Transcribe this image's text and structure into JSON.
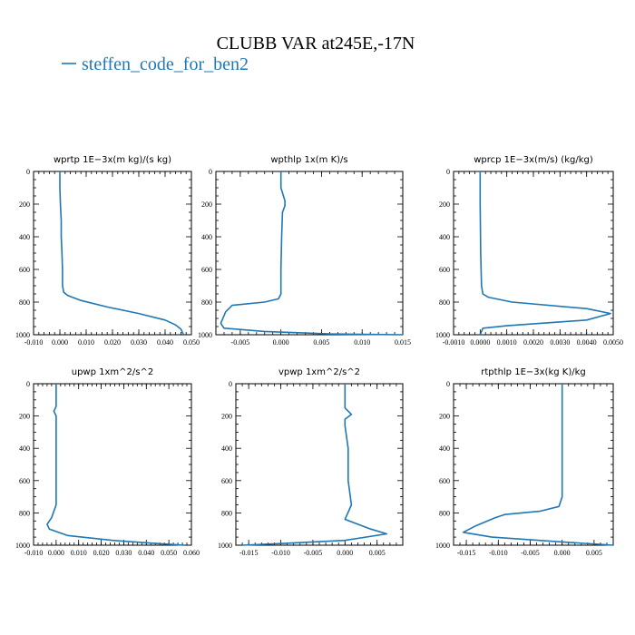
{
  "figure": {
    "title": "CLUBB VAR at245E,-17N",
    "legend_entry": "steffen_code_for_ben2",
    "series_color": "#1f77b4"
  },
  "chart_data": [
    {
      "type": "line",
      "title": "wprtp   1E−3x(m kg)/(s kg)",
      "xlim": [
        -0.01,
        0.05
      ],
      "ylim": [
        1000,
        0
      ],
      "xticks": [
        "-0.010",
        "0.000",
        "0.010",
        "0.020",
        "0.030",
        "0.040",
        "0.050"
      ],
      "xtick_values": [
        -0.01,
        0.0,
        0.01,
        0.02,
        0.03,
        0.04,
        0.05
      ],
      "yticks": [
        "0",
        "200",
        "400",
        "600",
        "800",
        "1000"
      ],
      "ytick_values": [
        0,
        200,
        400,
        600,
        800,
        1000
      ],
      "series": [
        {
          "x": [
            0.0,
            0.0,
            0.0002,
            0.0005,
            0.0005,
            0.0008,
            0.001,
            0.001,
            0.0015,
            0.003,
            0.008,
            0.018,
            0.03,
            0.04,
            0.044,
            0.046,
            0.047
          ],
          "y": [
            0,
            100,
            200,
            300,
            400,
            500,
            600,
            700,
            740,
            760,
            790,
            830,
            870,
            910,
            940,
            965,
            1000
          ]
        }
      ]
    },
    {
      "type": "line",
      "title": "wpthlp   1x(m K)/s",
      "xlim": [
        -0.008,
        0.015
      ],
      "ylim": [
        1000,
        0
      ],
      "xticks": [
        "-0.005",
        "0.000",
        "0.005",
        "0.010",
        "0.015"
      ],
      "xtick_values": [
        -0.005,
        0.0,
        0.005,
        0.01,
        0.015
      ],
      "yticks": [
        "0",
        "200",
        "400",
        "600",
        "800",
        "1000"
      ],
      "ytick_values": [
        0,
        200,
        400,
        600,
        800,
        1000
      ],
      "series": [
        {
          "x": [
            0.0,
            0.0,
            0.0005,
            0.0005,
            0.0002,
            0.0001,
            0.0,
            0.0,
            -0.0003,
            -0.002,
            -0.006,
            -0.0068,
            -0.0074,
            -0.007,
            -0.002,
            0.006,
            0.015
          ],
          "y": [
            0,
            100,
            180,
            210,
            250,
            400,
            600,
            750,
            780,
            800,
            820,
            860,
            930,
            960,
            980,
            995,
            1000
          ]
        }
      ]
    },
    {
      "type": "line",
      "title": "wprcp   1E−3x(m/s) (kg/kg)",
      "xlim": [
        -0.001,
        0.005
      ],
      "ylim": [
        1000,
        0
      ],
      "xticks": [
        "-0.0010",
        "0.0000",
        "0.0010",
        "0.0020",
        "0.0030",
        "0.0040",
        "0.0050"
      ],
      "xtick_values": [
        -0.001,
        0.0,
        0.001,
        0.002,
        0.003,
        0.004,
        0.005
      ],
      "yticks": [
        "0",
        "200",
        "400",
        "600",
        "800",
        "1000"
      ],
      "ytick_values": [
        0,
        200,
        400,
        600,
        800,
        1000
      ],
      "series": [
        {
          "x": [
            0.0,
            0.0,
            2e-05,
            5e-05,
            0.0001,
            0.0003,
            0.0012,
            0.004,
            0.0049,
            0.004,
            0.001,
            0.0001,
            0.0
          ],
          "y": [
            0,
            200,
            500,
            700,
            750,
            770,
            800,
            840,
            870,
            910,
            945,
            960,
            1000
          ]
        }
      ]
    },
    {
      "type": "line",
      "title": "upwp   1xm^2/s^2",
      "xlim": [
        -0.01,
        0.06
      ],
      "ylim": [
        1000,
        0
      ],
      "xticks": [
        "-0.010",
        "0.000",
        "0.010",
        "0.020",
        "0.030",
        "0.040",
        "0.050",
        "0.060"
      ],
      "xtick_values": [
        -0.01,
        0.0,
        0.01,
        0.02,
        0.03,
        0.04,
        0.05,
        0.06
      ],
      "yticks": [
        "0",
        "200",
        "400",
        "600",
        "800",
        "1000"
      ],
      "ytick_values": [
        0,
        200,
        400,
        600,
        800,
        1000
      ],
      "series": [
        {
          "x": [
            0.0,
            0.0,
            -0.001,
            0.0,
            0.0,
            0.0,
            0.0,
            -0.002,
            -0.004,
            -0.003,
            0.005,
            0.025,
            0.045,
            0.057
          ],
          "y": [
            0,
            140,
            170,
            200,
            400,
            600,
            750,
            830,
            870,
            900,
            940,
            970,
            990,
            1000
          ]
        }
      ]
    },
    {
      "type": "line",
      "title": "vpwp   1xm^2/s^2",
      "xlim": [
        -0.017,
        0.009
      ],
      "ylim": [
        1000,
        0
      ],
      "xticks": [
        "-0.015",
        "-0.010",
        "-0.005",
        "0.000",
        "0.005"
      ],
      "xtick_values": [
        -0.015,
        -0.01,
        -0.005,
        0.0,
        0.005
      ],
      "yticks": [
        "0",
        "200",
        "400",
        "600",
        "800",
        "1000"
      ],
      "ytick_values": [
        0,
        200,
        400,
        600,
        800,
        1000
      ],
      "series": [
        {
          "x": [
            0.0,
            0.0,
            0.001,
            0.0,
            0.0,
            0.0005,
            0.0005,
            0.001,
            0.0,
            0.004,
            0.0065,
            0.0,
            -0.01,
            -0.016
          ],
          "y": [
            0,
            150,
            190,
            220,
            260,
            400,
            600,
            750,
            840,
            900,
            930,
            970,
            990,
            1000
          ]
        }
      ]
    },
    {
      "type": "line",
      "title": "rtpthlp   1E−3x(kg K)/kg",
      "xlim": [
        -0.017,
        0.008
      ],
      "ylim": [
        1000,
        0
      ],
      "xticks": [
        "-0.015",
        "-0.010",
        "-0.005",
        "0.000",
        "0.005"
      ],
      "xtick_values": [
        -0.015,
        -0.01,
        -0.005,
        0.0,
        0.005
      ],
      "yticks": [
        "0",
        "200",
        "400",
        "600",
        "800",
        "1000"
      ],
      "ytick_values": [
        0,
        200,
        400,
        600,
        800,
        1000
      ],
      "series": [
        {
          "x": [
            0.0,
            0.0,
            0.0,
            -0.0005,
            -0.0035,
            -0.009,
            -0.0105,
            -0.0135,
            -0.0155,
            -0.011,
            0.0,
            0.008
          ],
          "y": [
            0,
            400,
            700,
            760,
            790,
            810,
            830,
            880,
            920,
            950,
            980,
            1000
          ]
        }
      ]
    }
  ]
}
